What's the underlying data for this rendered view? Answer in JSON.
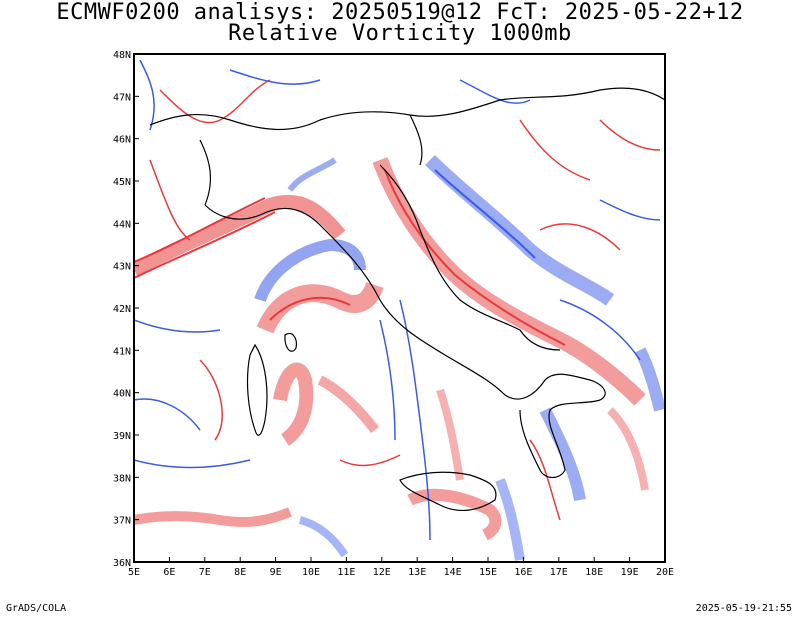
{
  "header": {
    "title_line1": "ECMWF0200 analisys: 20250519@12 FcT: 2025-05-22+12",
    "title_line2": "Relative Vorticity 1000mb"
  },
  "footer": {
    "left": "GrADS/COLA",
    "right": "2025-05-19-21:55"
  },
  "map": {
    "lon_range": [
      5,
      20
    ],
    "lat_range": [
      36,
      48
    ],
    "lon_labels": [
      "5E",
      "6E",
      "7E",
      "8E",
      "9E",
      "10E",
      "11E",
      "12E",
      "13E",
      "14E",
      "15E",
      "16E",
      "17E",
      "18E",
      "19E",
      "20E"
    ],
    "lat_labels": [
      "36N",
      "37N",
      "38N",
      "39N",
      "40N",
      "41N",
      "42N",
      "43N",
      "44N",
      "45N",
      "46N",
      "47N",
      "48N"
    ],
    "colors": {
      "positive_vorticity": "#e83a3a",
      "negative_vorticity": "#3a5ae8",
      "coastline": "#000000"
    }
  }
}
